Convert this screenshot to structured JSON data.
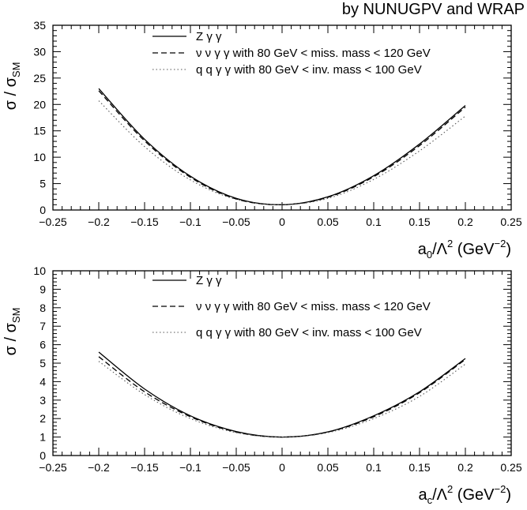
{
  "header_text": "by NUNUGPV and WRAP",
  "chart_data": [
    {
      "type": "line",
      "ylabel_main": "σ / σ",
      "ylabel_sub": "SM",
      "xlabel_base": "a",
      "xlabel_sub": "0",
      "xlabel_rest": "/Λ",
      "xlabel_sup1": "2",
      "xlabel_unit": " (GeV",
      "xlabel_sup2": "−2",
      "xlabel_close": ")",
      "xlim": [
        -0.25,
        0.25
      ],
      "ylim": [
        0,
        35
      ],
      "xticks": [
        -0.25,
        -0.2,
        -0.15,
        -0.1,
        -0.05,
        0,
        0.05,
        0.1,
        0.15,
        0.2,
        0.25
      ],
      "xtick_labels": [
        "−0.25",
        "−0.2",
        "−0.15",
        "−0.1",
        "−0.05",
        "0",
        "0.05",
        "0.1",
        "0.15",
        "0.2",
        "0.25"
      ],
      "yticks": [
        0,
        5,
        10,
        15,
        20,
        25,
        30,
        35
      ],
      "ytick_labels": [
        "0",
        "5",
        "10",
        "15",
        "20",
        "25",
        "30",
        "35"
      ],
      "series": [
        {
          "name": "Z γ γ",
          "style": "solid",
          "color": "#000000",
          "x": [
            -0.2,
            -0.15,
            -0.1,
            -0.05,
            0,
            0.05,
            0.1,
            0.15,
            0.2
          ],
          "y": [
            23.0,
            13.4,
            6.4,
            2.2,
            1.0,
            2.5,
            6.5,
            12.5,
            19.8
          ]
        },
        {
          "name": "ν ν γ γ with 80 GeV < miss. mass < 120 GeV",
          "style": "dashed",
          "color": "#000000",
          "x": [
            -0.2,
            -0.15,
            -0.1,
            -0.05,
            0,
            0.05,
            0.1,
            0.15,
            0.2
          ],
          "y": [
            22.6,
            13.1,
            6.2,
            2.1,
            1.0,
            2.4,
            6.3,
            12.2,
            19.5
          ]
        },
        {
          "name": "q q γ γ with 80 GeV < inv. mass < 100 GeV",
          "style": "dotted",
          "color": "#555555",
          "x": [
            -0.2,
            -0.15,
            -0.1,
            -0.05,
            0,
            0.05,
            0.1,
            0.15,
            0.2
          ],
          "y": [
            20.7,
            12.0,
            5.7,
            2.0,
            1.0,
            2.2,
            5.8,
            11.2,
            17.8
          ]
        }
      ]
    },
    {
      "type": "line",
      "ylabel_main": "σ / σ",
      "ylabel_sub": "SM",
      "xlabel_base": "a",
      "xlabel_sub": "c",
      "xlabel_rest": "/Λ",
      "xlabel_sup1": "2",
      "xlabel_unit": " (GeV",
      "xlabel_sup2": "−2",
      "xlabel_close": ")",
      "xlim": [
        -0.25,
        0.25
      ],
      "ylim": [
        0,
        10
      ],
      "xticks": [
        -0.25,
        -0.2,
        -0.15,
        -0.1,
        -0.05,
        0,
        0.05,
        0.1,
        0.15,
        0.2,
        0.25
      ],
      "xtick_labels": [
        "−0.25",
        "−0.2",
        "−0.15",
        "−0.1",
        "−0.05",
        "0",
        "0.05",
        "0.1",
        "0.15",
        "0.2",
        "0.25"
      ],
      "yticks": [
        0,
        1,
        2,
        3,
        4,
        5,
        6,
        7,
        8,
        9,
        10
      ],
      "ytick_labels": [
        "0",
        "1",
        "2",
        "3",
        "4",
        "5",
        "6",
        "7",
        "8",
        "9",
        "10"
      ],
      "series": [
        {
          "name": "Z γ γ",
          "style": "solid",
          "color": "#000000",
          "x": [
            -0.2,
            -0.15,
            -0.1,
            -0.05,
            0,
            0.05,
            0.1,
            0.15,
            0.2
          ],
          "y": [
            5.6,
            3.6,
            2.15,
            1.3,
            1.0,
            1.28,
            2.15,
            3.45,
            5.25
          ]
        },
        {
          "name": "ν ν γ γ with 80 GeV < miss. mass < 120 GeV",
          "style": "dashed",
          "color": "#000000",
          "x": [
            -0.2,
            -0.15,
            -0.1,
            -0.05,
            0,
            0.05,
            0.1,
            0.15,
            0.2
          ],
          "y": [
            5.35,
            3.45,
            2.1,
            1.27,
            1.0,
            1.27,
            2.1,
            3.4,
            5.2
          ]
        },
        {
          "name": "q q γ γ with 80 GeV < inv. mass < 100 GeV",
          "style": "dotted",
          "color": "#555555",
          "x": [
            -0.2,
            -0.15,
            -0.1,
            -0.05,
            0,
            0.05,
            0.1,
            0.15,
            0.2
          ],
          "y": [
            5.1,
            3.3,
            2.0,
            1.24,
            1.0,
            1.24,
            2.0,
            3.2,
            4.95
          ]
        }
      ]
    }
  ]
}
